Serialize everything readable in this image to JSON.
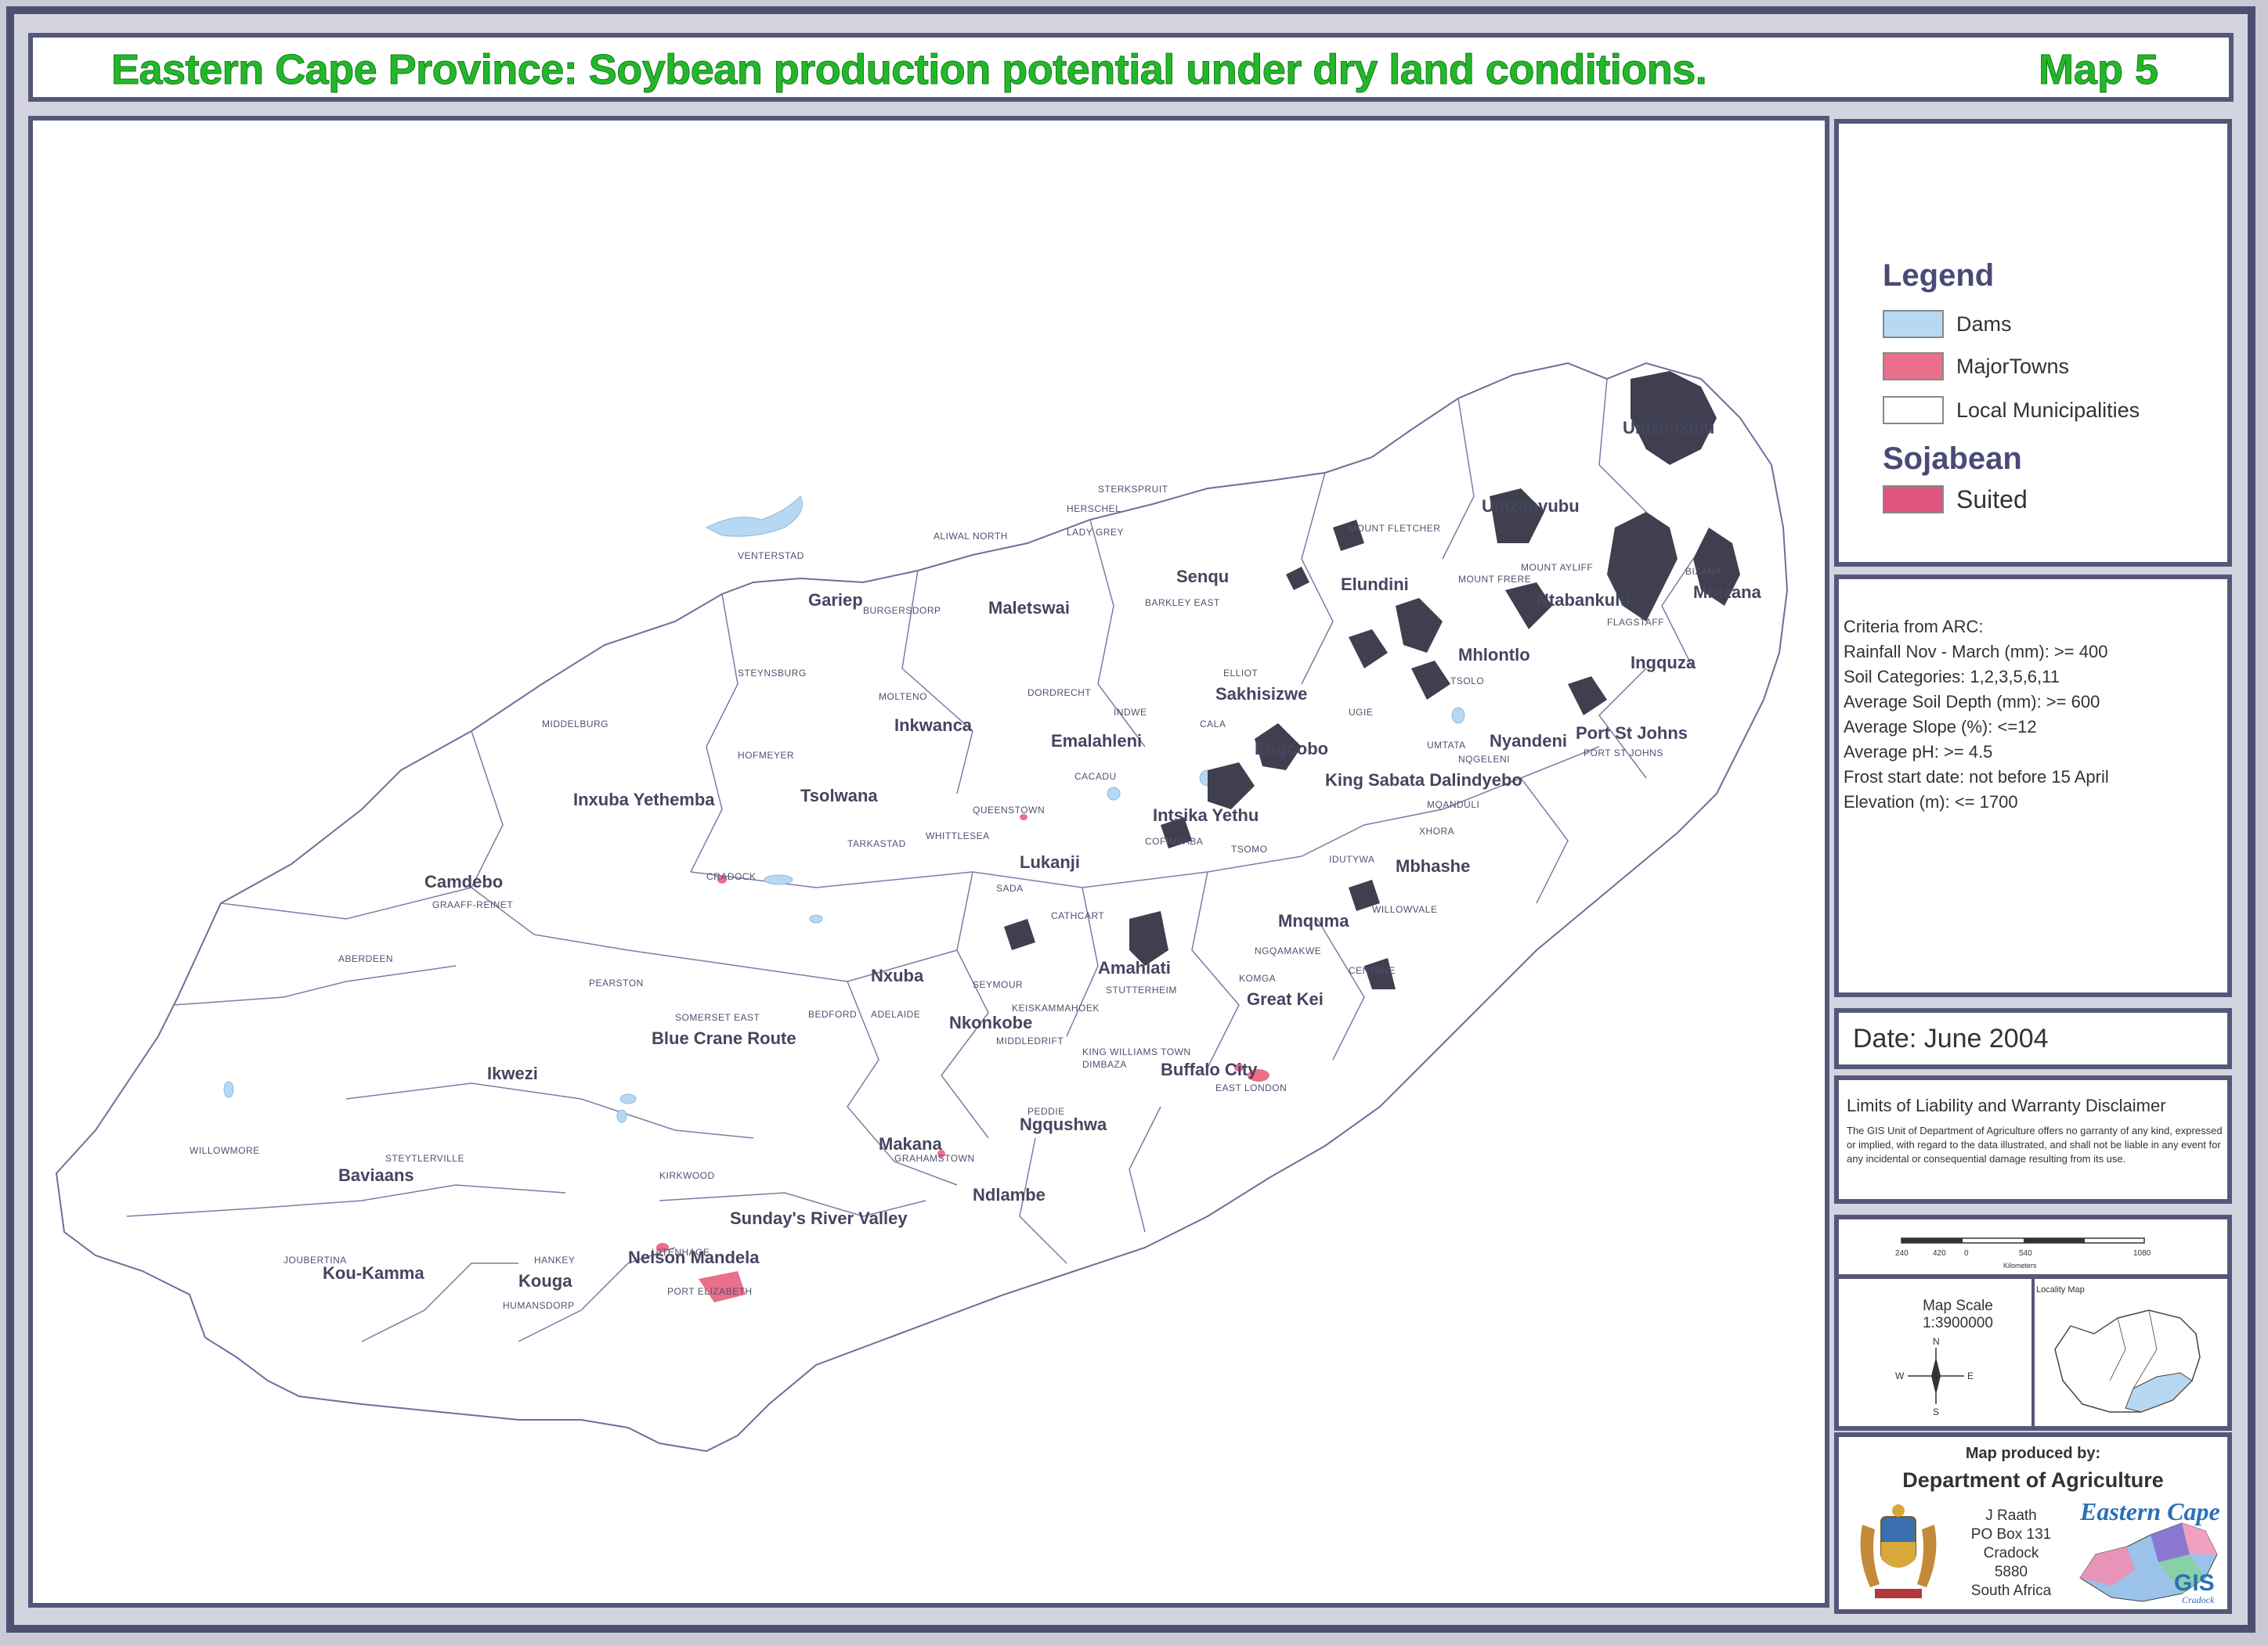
{
  "title": "Eastern Cape Province: Soybean production potential under dry land conditions.",
  "map_number": "Map  5",
  "legend": {
    "title": "Legend",
    "items": [
      {
        "label": "Dams",
        "color": "#b7d8f3"
      },
      {
        "label": "MajorTowns",
        "color": "#ea6f8a"
      },
      {
        "label": "Local Municipalities",
        "color": "#ffffff"
      }
    ],
    "crop_heading": "Sojabean",
    "crop_items": [
      {
        "label": "Suited",
        "color": "#e0557d"
      }
    ]
  },
  "criteria": [
    "Criteria from ARC:",
    "Rainfall Nov - March (mm): >= 400",
    "Soil Categories:  1,2,3,5,6,11",
    "Average Soil Depth (mm):  >= 600",
    "Average Slope (%): <=12",
    "Average pH:  >= 4.5",
    "Frost start date:  not before 15 April",
    "Elevation (m):  <= 1700"
  ],
  "date": "Date:  June 2004",
  "disclaimer": {
    "title": "Limits of Liability and Warranty Disclaimer",
    "body": "The GIS Unit of Department of Agriculture offers no garranty of any kind, expressed or implied, with regard to the data illustrated, and shall not be liable in any event for any incidental or consequential damage resulting from its use."
  },
  "scale": {
    "ticks": [
      "240",
      "420",
      "0",
      "540",
      "1080"
    ],
    "units": "Kilometers",
    "label": "Map Scale",
    "ratio": "1:3900000",
    "compass": [
      "N",
      "S",
      "E",
      "W"
    ],
    "locality_label": "Locality Map"
  },
  "credit": {
    "heading": "Map produced by:",
    "department": "Department of Agriculture",
    "address": [
      "J Raath",
      "PO Box 131",
      "Cradock",
      "5880",
      "South Africa"
    ],
    "logo_text": "Eastern Cape",
    "gis_text": "GIS",
    "gis_sub": "Cradock"
  },
  "municipalities": [
    "Gariep",
    "Maletswai",
    "Senqu",
    "Elundini",
    "Umzimvubu",
    "Ntabankulu",
    "Mbizana",
    "Umzimkulu",
    "Mhlontlo",
    "Ingquza",
    "Port St Johns",
    "Sakhisizwe",
    "Emalahleni",
    "Inkwanca",
    "Tsolwana",
    "Inxuba Yethemba",
    "Engcobo",
    "Nyandeni",
    "King Sabata Dalindyebo",
    "Intsika Yethu",
    "Lukanji",
    "Mbhashe",
    "Mnquma",
    "Camdebo",
    "Nxuba",
    "Amahlati",
    "Great Kei",
    "Nkonkobe",
    "Buffalo City",
    "Blue Crane Route",
    "Ikwezi",
    "Ngqushwa",
    "Makana",
    "Ndlambe",
    "Baviaans",
    "Sunday's River Valley",
    "Nelson Mandela",
    "Kou-Kamma",
    "Kouga"
  ],
  "towns": [
    "VENTERSTAD",
    "ALIWAL NORTH",
    "STERKSPRUIT",
    "HERSCHEL",
    "LADY GREY",
    "BARKLEY EAST",
    "BURGERSDORP",
    "MOUNT FLETCHER",
    "MOUNT FRERE",
    "MOUNT AYLIFF",
    "BIZANA",
    "FLAGSTAFF",
    "TSOLO",
    "UMTATA",
    "NQGELENI",
    "PORT ST JOHNS",
    "UGIE",
    "ELLIOT",
    "CALA",
    "INDWE",
    "DORDRECHT",
    "MOLTENO",
    "STEYNSBURG",
    "MIDDELBURG",
    "HOFMEYER",
    "CACADU",
    "QUEENSTOWN",
    "COFIMVABA",
    "TSOMO",
    "MQANDULI",
    "XHORA",
    "IDUTYWA",
    "WILLOWVALE",
    "NGQAMAKWE",
    "CENTANE",
    "TARKASTAD",
    "WHITTLESEA",
    "CRADOCK",
    "SADA",
    "CATHCART",
    "GRAAFF-REINET",
    "ABERDEEN",
    "PEARSTON",
    "SOMERSET EAST",
    "BEDFORD",
    "ADELAIDE",
    "SEYMOUR",
    "KEISKAMMAHOEK",
    "STUTTERHEIM",
    "KOMGA",
    "MIDDLEDRIFT",
    "KING WILLIAMS TOWN",
    "DIMBAZA",
    "EAST LONDON",
    "PEDDIE",
    "GRAHAMSTOWN",
    "WILLOWMORE",
    "STEYTLERVILLE",
    "KIRKWOOD",
    "UITENHAGE",
    "JOUBERTINA",
    "HANKEY",
    "HUMANSDORP",
    "PORT ELIZABETH"
  ]
}
